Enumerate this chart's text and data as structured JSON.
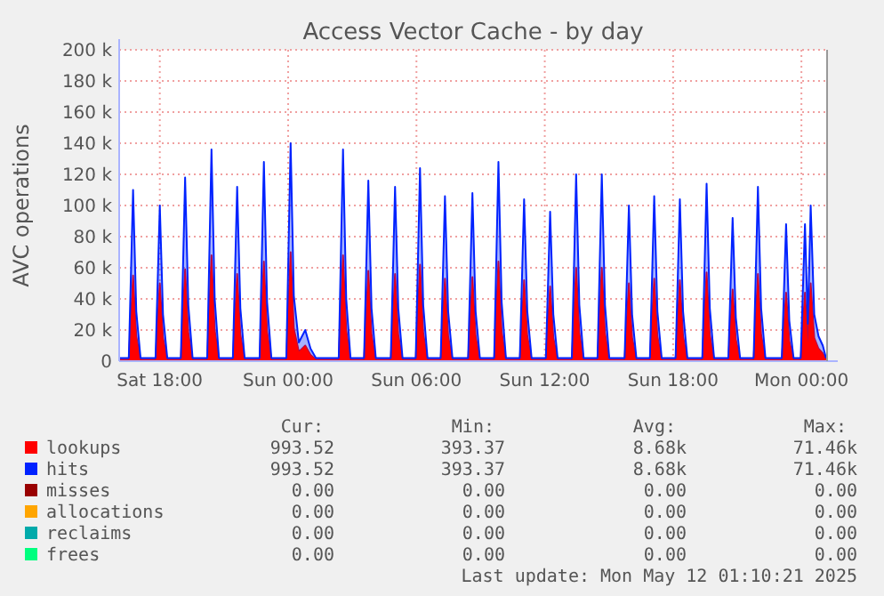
{
  "chart_data": {
    "type": "area",
    "title": "Access Vector Cache - by day",
    "ylabel": "AVC operations",
    "stacked": true,
    "grid": true,
    "legend": "bottom",
    "xlim": [
      "2025-05-10T16:06",
      "2025-05-12T01:12"
    ],
    "xticks": [
      {
        "value": "2025-05-10T18:00",
        "label": "Sat 18:00"
      },
      {
        "value": "2025-05-11T00:00",
        "label": "Sun 00:00"
      },
      {
        "value": "2025-05-11T06:00",
        "label": "Sun 06:00"
      },
      {
        "value": "2025-05-11T12:00",
        "label": "Sun 12:00"
      },
      {
        "value": "2025-05-11T18:00",
        "label": "Sun 18:00"
      },
      {
        "value": "2025-05-12T00:00",
        "label": "Mon 00:00"
      }
    ],
    "ylim": [
      0,
      200000
    ],
    "yticks": [
      {
        "value": 0,
        "label": "0"
      },
      {
        "value": 20000,
        "label": "20 k"
      },
      {
        "value": 40000,
        "label": "40 k"
      },
      {
        "value": 60000,
        "label": "60 k"
      },
      {
        "value": 80000,
        "label": "80 k"
      },
      {
        "value": 100000,
        "label": "100 k"
      },
      {
        "value": 120000,
        "label": "120 k"
      },
      {
        "value": 140000,
        "label": "140 k"
      },
      {
        "value": 160000,
        "label": "160 k"
      },
      {
        "value": 180000,
        "label": "180 k"
      },
      {
        "value": 200000,
        "label": "200 k"
      }
    ],
    "x": [
      "2025-05-10T16:06",
      "2025-05-10T16:33",
      "2025-05-10T16:45",
      "2025-05-10T16:54",
      "2025-05-10T17:06",
      "2025-05-10T17:48",
      "2025-05-10T18:00",
      "2025-05-10T18:09",
      "2025-05-10T18:21",
      "2025-05-10T18:59",
      "2025-05-10T19:11",
      "2025-05-10T19:20",
      "2025-05-10T19:32",
      "2025-05-10T20:13",
      "2025-05-10T20:25",
      "2025-05-10T20:34",
      "2025-05-10T20:46",
      "2025-05-10T21:25",
      "2025-05-10T21:37",
      "2025-05-10T21:46",
      "2025-05-10T21:58",
      "2025-05-10T22:40",
      "2025-05-10T22:52",
      "2025-05-10T23:01",
      "2025-05-10T23:13",
      "2025-05-10T23:55",
      "2025-05-11T00:07",
      "2025-05-11T00:16",
      "2025-05-11T00:30",
      "2025-05-11T00:48",
      "2025-05-11T01:03",
      "2025-05-11T01:18",
      "2025-05-11T02:22",
      "2025-05-11T02:34",
      "2025-05-11T02:43",
      "2025-05-11T02:55",
      "2025-05-11T03:33",
      "2025-05-11T03:45",
      "2025-05-11T03:54",
      "2025-05-11T04:06",
      "2025-05-11T04:48",
      "2025-05-11T05:00",
      "2025-05-11T05:09",
      "2025-05-11T05:21",
      "2025-05-11T05:58",
      "2025-05-11T06:10",
      "2025-05-11T06:19",
      "2025-05-11T06:31",
      "2025-05-11T07:08",
      "2025-05-11T07:20",
      "2025-05-11T07:29",
      "2025-05-11T07:41",
      "2025-05-11T08:25",
      "2025-05-11T08:37",
      "2025-05-11T08:46",
      "2025-05-11T08:58",
      "2025-05-11T09:38",
      "2025-05-11T09:50",
      "2025-05-11T09:59",
      "2025-05-11T10:11",
      "2025-05-11T10:50",
      "2025-05-11T11:02",
      "2025-05-11T11:11",
      "2025-05-11T11:23",
      "2025-05-11T12:03",
      "2025-05-11T12:15",
      "2025-05-11T12:24",
      "2025-05-11T12:36",
      "2025-05-11T13:16",
      "2025-05-11T13:28",
      "2025-05-11T13:37",
      "2025-05-11T13:49",
      "2025-05-11T14:28",
      "2025-05-11T14:40",
      "2025-05-11T14:49",
      "2025-05-11T15:01",
      "2025-05-11T15:44",
      "2025-05-11T15:56",
      "2025-05-11T16:05",
      "2025-05-11T16:17",
      "2025-05-11T16:55",
      "2025-05-11T17:07",
      "2025-05-11T17:16",
      "2025-05-11T17:28",
      "2025-05-11T18:07",
      "2025-05-11T18:19",
      "2025-05-11T18:28",
      "2025-05-11T18:40",
      "2025-05-11T19:22",
      "2025-05-11T19:34",
      "2025-05-11T19:43",
      "2025-05-11T19:55",
      "2025-05-11T20:35",
      "2025-05-11T20:47",
      "2025-05-11T20:56",
      "2025-05-11T21:08",
      "2025-05-11T21:46",
      "2025-05-11T21:58",
      "2025-05-11T22:07",
      "2025-05-11T22:19",
      "2025-05-11T23:05",
      "2025-05-11T23:17",
      "2025-05-11T23:26",
      "2025-05-11T23:38",
      "2025-05-11T23:58",
      "2025-05-12T00:10",
      "2025-05-12T00:18",
      "2025-05-12T00:26",
      "2025-05-12T00:36",
      "2025-05-12T00:48",
      "2025-05-12T01:00",
      "2025-05-12T01:09"
    ],
    "series": [
      {
        "name": "lookups",
        "color": "#ff0000",
        "values": [
          1000,
          1000,
          55000,
          16000,
          1000,
          1000,
          50000,
          15000,
          1000,
          1000,
          59000,
          18000,
          1000,
          1000,
          68000,
          20000,
          1000,
          1000,
          56000,
          17000,
          1000,
          1000,
          64000,
          19000,
          1000,
          1000,
          70000,
          21000,
          6000,
          10000,
          4000,
          1000,
          1000,
          68000,
          20000,
          1000,
          1000,
          58000,
          17000,
          1000,
          1000,
          56000,
          17000,
          1000,
          1000,
          62000,
          18000,
          1000,
          1000,
          53000,
          16000,
          1000,
          1000,
          54000,
          16000,
          1000,
          1000,
          64000,
          19000,
          1000,
          1000,
          52000,
          16000,
          1000,
          1000,
          48000,
          15000,
          1000,
          1000,
          60000,
          18000,
          1000,
          1000,
          60000,
          18000,
          1000,
          1000,
          50000,
          15000,
          1000,
          1000,
          53000,
          16000,
          1000,
          1000,
          52000,
          16000,
          1000,
          1000,
          57000,
          17000,
          1000,
          1000,
          46000,
          14000,
          1000,
          1000,
          56000,
          17000,
          1000,
          1000,
          44000,
          13000,
          1000,
          1000,
          44000,
          12000,
          50000,
          15000,
          8000,
          5000,
          1000
        ]
      },
      {
        "name": "hits",
        "color": "#0022ff",
        "values": [
          1000,
          1000,
          55000,
          16000,
          1000,
          1000,
          50000,
          15000,
          1000,
          1000,
          59000,
          18000,
          1000,
          1000,
          68000,
          20000,
          1000,
          1000,
          56000,
          17000,
          1000,
          1000,
          64000,
          19000,
          1000,
          1000,
          70000,
          21000,
          6000,
          10000,
          4000,
          1000,
          1000,
          68000,
          20000,
          1000,
          1000,
          58000,
          17000,
          1000,
          1000,
          56000,
          17000,
          1000,
          1000,
          62000,
          18000,
          1000,
          1000,
          53000,
          16000,
          1000,
          1000,
          54000,
          16000,
          1000,
          1000,
          64000,
          19000,
          1000,
          1000,
          52000,
          16000,
          1000,
          1000,
          48000,
          15000,
          1000,
          1000,
          60000,
          18000,
          1000,
          1000,
          60000,
          18000,
          1000,
          1000,
          50000,
          15000,
          1000,
          1000,
          53000,
          16000,
          1000,
          1000,
          52000,
          16000,
          1000,
          1000,
          57000,
          17000,
          1000,
          1000,
          46000,
          14000,
          1000,
          1000,
          56000,
          17000,
          1000,
          1000,
          44000,
          13000,
          1000,
          1000,
          44000,
          12000,
          50000,
          15000,
          8000,
          5000,
          1000
        ]
      },
      {
        "name": "misses",
        "color": "#990000",
        "values": [
          null,
          null,
          null,
          null,
          null,
          null,
          null,
          null,
          null,
          null,
          null,
          null,
          null,
          null,
          null,
          null,
          null,
          null,
          null,
          null,
          null,
          null,
          null,
          null,
          null,
          null,
          null,
          null,
          null,
          null,
          null,
          null,
          null,
          null,
          null,
          null,
          null,
          null,
          null,
          null,
          null,
          null,
          null,
          null,
          null,
          null,
          null,
          null,
          null,
          null,
          null,
          null,
          null,
          null,
          null,
          null,
          null,
          null,
          null,
          null,
          null,
          null,
          null,
          null,
          null,
          null,
          null,
          null,
          null,
          null,
          null,
          null,
          null,
          null,
          null,
          null,
          null,
          null,
          null,
          null,
          null,
          null,
          null,
          null,
          null,
          null,
          null,
          null,
          null,
          null,
          null,
          null,
          null,
          null,
          null,
          null,
          null,
          null,
          null,
          null,
          null,
          null,
          null,
          null,
          null,
          null,
          null,
          null,
          null,
          null,
          null,
          null
        ]
      },
      {
        "name": "allocations",
        "color": "#ffa500",
        "values": [
          null,
          null,
          null,
          null,
          null,
          null,
          null,
          null,
          null,
          null,
          null,
          null,
          null,
          null,
          null,
          null,
          null,
          null,
          null,
          null,
          null,
          null,
          null,
          null,
          null,
          null,
          null,
          null,
          null,
          null,
          null,
          null,
          null,
          null,
          null,
          null,
          null,
          null,
          null,
          null,
          null,
          null,
          null,
          null,
          null,
          null,
          null,
          null,
          null,
          null,
          null,
          null,
          null,
          null,
          null,
          null,
          null,
          null,
          null,
          null,
          null,
          null,
          null,
          null,
          null,
          null,
          null,
          null,
          null,
          null,
          null,
          null,
          null,
          null,
          null,
          null,
          null,
          null,
          null,
          null,
          null,
          null,
          null,
          null,
          null,
          null,
          null,
          null,
          null,
          null,
          null,
          null,
          null,
          null,
          null,
          null,
          null,
          null,
          null,
          null,
          null,
          null,
          null,
          null,
          null,
          null,
          null,
          null,
          null,
          null,
          null,
          null
        ]
      },
      {
        "name": "reclaims",
        "color": "#00aaaa",
        "values": [
          null,
          null,
          null,
          null,
          null,
          null,
          null,
          null,
          null,
          null,
          null,
          null,
          null,
          null,
          null,
          null,
          null,
          null,
          null,
          null,
          null,
          null,
          null,
          null,
          null,
          null,
          null,
          null,
          null,
          null,
          null,
          null,
          null,
          null,
          null,
          null,
          null,
          null,
          null,
          null,
          null,
          null,
          null,
          null,
          null,
          null,
          null,
          null,
          null,
          null,
          null,
          null,
          null,
          null,
          null,
          null,
          null,
          null,
          null,
          null,
          null,
          null,
          null,
          null,
          null,
          null,
          null,
          null,
          null,
          null,
          null,
          null,
          null,
          null,
          null,
          null,
          null,
          null,
          null,
          null,
          null,
          null,
          null,
          null,
          null,
          null,
          null,
          null,
          null,
          null,
          null,
          null,
          null,
          null,
          null,
          null,
          null,
          null,
          null,
          null,
          null,
          null,
          null,
          null,
          null,
          null,
          null,
          null,
          null,
          null,
          null,
          null
        ]
      },
      {
        "name": "frees",
        "color": "#00ff7f",
        "values": [
          null,
          null,
          null,
          null,
          null,
          null,
          null,
          null,
          null,
          null,
          null,
          null,
          null,
          null,
          null,
          null,
          null,
          null,
          null,
          null,
          null,
          null,
          null,
          null,
          null,
          null,
          null,
          null,
          null,
          null,
          null,
          null,
          null,
          null,
          null,
          null,
          null,
          null,
          null,
          null,
          null,
          null,
          null,
          null,
          null,
          null,
          null,
          null,
          null,
          null,
          null,
          null,
          null,
          null,
          null,
          null,
          null,
          null,
          null,
          null,
          null,
          null,
          null,
          null,
          null,
          null,
          null,
          null,
          null,
          null,
          null,
          null,
          null,
          null,
          null,
          null,
          null,
          null,
          null,
          null,
          null,
          null,
          null,
          null,
          null,
          null,
          null,
          null,
          null,
          null,
          null,
          null,
          null,
          null,
          null,
          null,
          null,
          null,
          null,
          null,
          null,
          null,
          null,
          null,
          null,
          null,
          null,
          null,
          null,
          null,
          null,
          null
        ]
      }
    ],
    "annotations": [
      "Cur:",
      "Min:",
      "Avg:",
      "Max:",
      "993.52",
      "393.37",
      "8.68k",
      "71.46k",
      "993.52",
      "393.37",
      "8.68k",
      "71.46k",
      "0.00",
      "0.00",
      "0.00",
      "0.00",
      "0.00",
      "0.00",
      "0.00",
      "0.00",
      "0.00",
      "0.00",
      "0.00",
      "0.00",
      "0.00",
      "0.00",
      "0.00",
      "0.00",
      "Last update: Mon May 12 01:10:21 2025"
    ]
  }
}
